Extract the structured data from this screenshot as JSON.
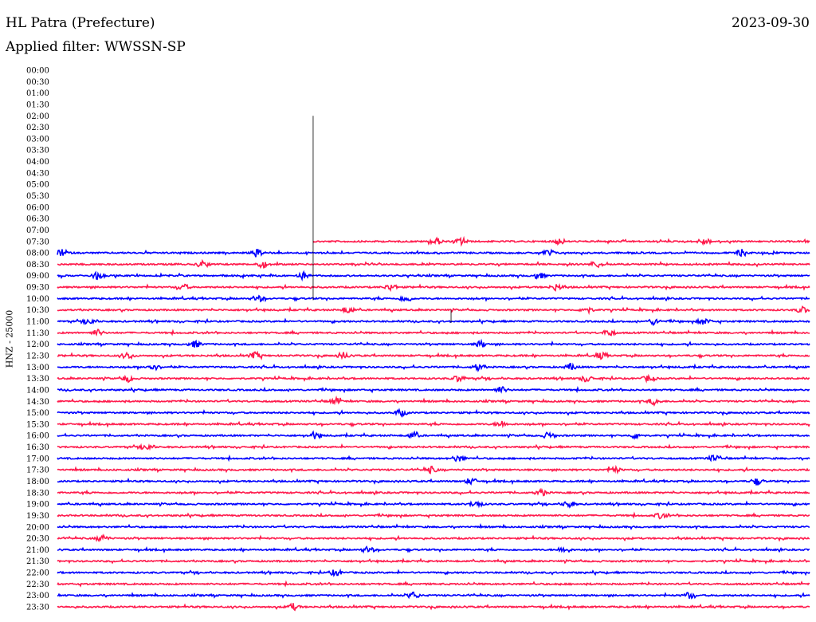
{
  "header": {
    "station": "HL Patra (Prefecture)",
    "date": "2023-09-30",
    "filter": "Applied filter: WWSSN-SP"
  },
  "chart_data": {
    "type": "line",
    "title": "HL Patra (Prefecture)",
    "ylabel": "HNZ - 25000",
    "xlabel": "",
    "minutes_per_row": 30,
    "colors": {
      "odd": "#ff1a4c",
      "even": "#0000ff",
      "spike": "#000000"
    },
    "rows": [
      {
        "label": "00:00",
        "events": []
      },
      {
        "label": "00:30",
        "events": []
      },
      {
        "label": "01:00",
        "events": []
      },
      {
        "label": "01:30",
        "events": []
      },
      {
        "label": "02:00",
        "events": []
      },
      {
        "label": "02:30",
        "events": []
      },
      {
        "label": "03:00",
        "events": []
      },
      {
        "label": "03:30",
        "events": []
      },
      {
        "label": "04:00",
        "events": []
      },
      {
        "label": "04:30",
        "events": []
      },
      {
        "label": "05:00",
        "events": []
      },
      {
        "label": "05:30",
        "events": []
      },
      {
        "label": "06:00",
        "events": []
      },
      {
        "label": "06:30",
        "events": []
      },
      {
        "label": "07:00",
        "events": []
      },
      {
        "label": "07:30",
        "start": 10.2,
        "events": [
          15.1,
          16.1,
          20.0,
          25.8
        ]
      },
      {
        "label": "08:00",
        "events": [
          0.2,
          8.0,
          19.6,
          27.3
        ]
      },
      {
        "label": "08:30",
        "events": [
          5.8,
          8.2,
          21.5
        ]
      },
      {
        "label": "09:00",
        "events": [
          1.6,
          9.8,
          19.2
        ]
      },
      {
        "label": "09:30",
        "events": [
          5.0,
          13.3,
          19.9
        ]
      },
      {
        "label": "10:00",
        "events": [
          8.0,
          13.9
        ]
      },
      {
        "label": "10:30",
        "events": [
          11.6,
          21.1,
          29.7
        ]
      },
      {
        "label": "11:00",
        "events": [
          1.3,
          23.8,
          25.8
        ]
      },
      {
        "label": "11:30",
        "events": [
          1.6,
          22.0
        ]
      },
      {
        "label": "12:00",
        "events": [
          5.5,
          16.9
        ]
      },
      {
        "label": "12:30",
        "events": [
          2.8,
          7.9,
          11.4,
          21.7
        ]
      },
      {
        "label": "13:00",
        "events": [
          3.8,
          16.8,
          20.5
        ]
      },
      {
        "label": "13:30",
        "events": [
          2.8,
          16.0,
          21.1,
          23.6
        ]
      },
      {
        "label": "14:00",
        "events": [
          17.7
        ]
      },
      {
        "label": "14:30",
        "events": [
          11.1,
          23.8
        ]
      },
      {
        "label": "15:00",
        "events": [
          13.7
        ]
      },
      {
        "label": "15:30",
        "events": [
          17.7
        ]
      },
      {
        "label": "16:00",
        "events": [
          10.3,
          14.2,
          19.6,
          23.1
        ]
      },
      {
        "label": "16:30",
        "events": [
          3.6
        ]
      },
      {
        "label": "17:00",
        "events": [
          16.0,
          26.2
        ]
      },
      {
        "label": "17:30",
        "events": [
          14.9,
          22.2
        ]
      },
      {
        "label": "18:00",
        "events": [
          16.5,
          27.9
        ]
      },
      {
        "label": "18:30",
        "events": [
          19.3
        ]
      },
      {
        "label": "19:00",
        "events": [
          16.7,
          20.4
        ]
      },
      {
        "label": "19:30",
        "events": [
          24.1
        ]
      },
      {
        "label": "20:00",
        "events": []
      },
      {
        "label": "20:30",
        "events": [
          1.8
        ]
      },
      {
        "label": "21:00",
        "events": [
          12.4,
          20.2
        ]
      },
      {
        "label": "21:30",
        "events": []
      },
      {
        "label": "22:00",
        "events": [
          11.1
        ]
      },
      {
        "label": "22:30",
        "events": []
      },
      {
        "label": "23:00",
        "events": [
          14.2,
          25.2
        ]
      },
      {
        "label": "23:30",
        "events": [
          9.4
        ]
      }
    ],
    "spikes": [
      {
        "minute": 10.2,
        "from": "02:00",
        "to": "10:00"
      },
      {
        "minute": 15.7,
        "from": "10:30",
        "to": "11:00"
      }
    ]
  }
}
